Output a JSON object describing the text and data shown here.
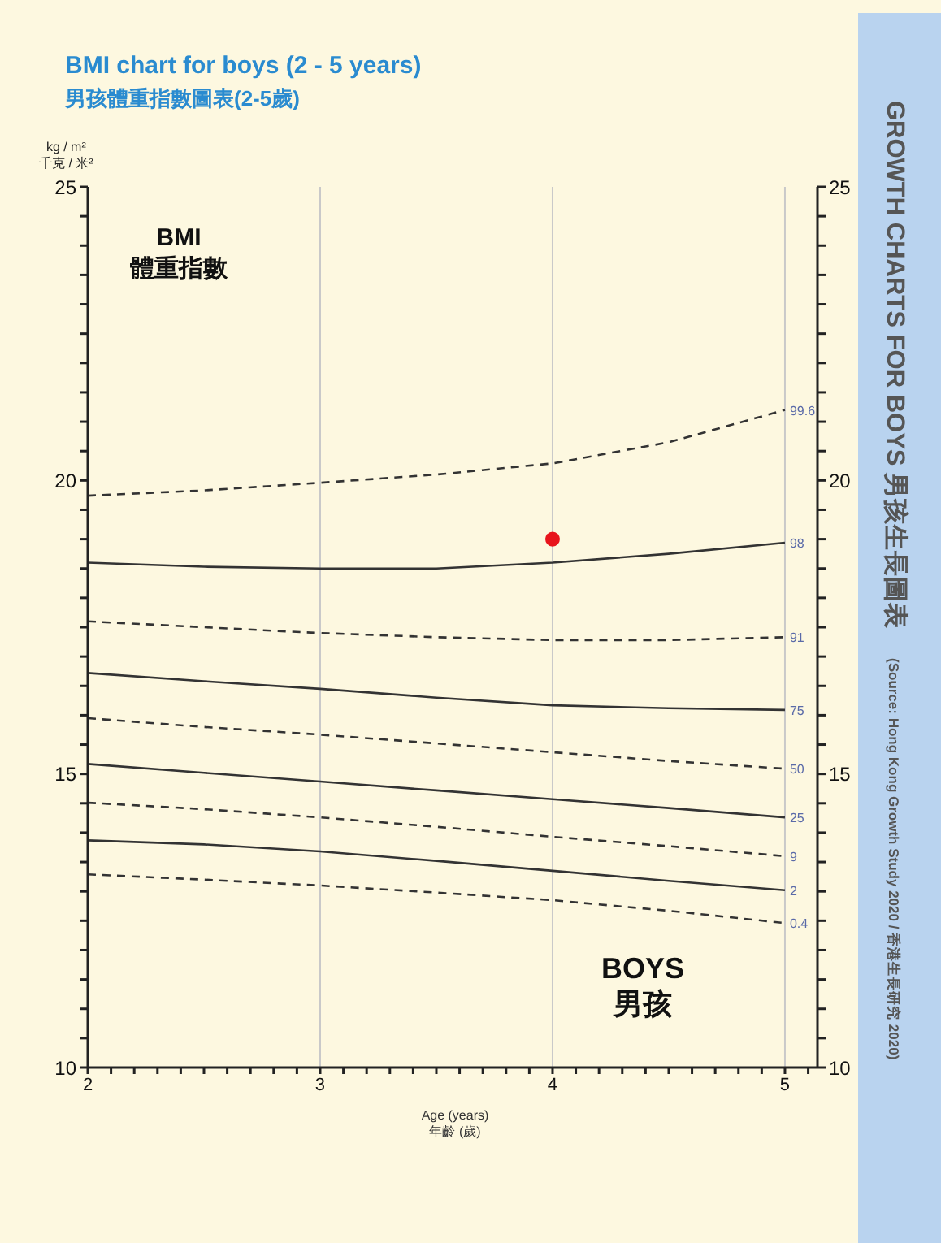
{
  "chart_data": {
    "type": "line",
    "title": "BMI chart for boys (2 - 5 years)",
    "subtitle": "男孩體重指數圖表(2-5歲)",
    "xlabel": "Age (years)\n年齡 (歲)",
    "ylabel": "kg / m²\n千克 / 米²",
    "annotations": [
      "BMI\n體重指數",
      "BOYS\n男孩",
      "GROWTH CHARTS FOR BOYS 男孩生長圖表",
      "(Source: Hong Kong Growth Study 2020 / 香港生長研究 2020)"
    ],
    "x": [
      2,
      2.5,
      3,
      3.5,
      4,
      4.5,
      5
    ],
    "series": [
      {
        "name": "99.6",
        "color": "#333333",
        "line_style": "dashed",
        "values": [
          19.74,
          19.83,
          19.96,
          20.1,
          20.29,
          20.65,
          21.2
        ]
      },
      {
        "name": "98",
        "color": "#333333",
        "line_style": "solid",
        "values": [
          18.6,
          18.53,
          18.5,
          18.5,
          18.6,
          18.75,
          18.94
        ]
      },
      {
        "name": "91",
        "color": "#333333",
        "line_style": "dashed",
        "values": [
          17.6,
          17.5,
          17.4,
          17.33,
          17.28,
          17.28,
          17.33
        ]
      },
      {
        "name": "75",
        "color": "#333333",
        "line_style": "solid",
        "values": [
          16.72,
          16.58,
          16.45,
          16.3,
          16.17,
          16.12,
          16.09
        ]
      },
      {
        "name": "50",
        "color": "#333333",
        "line_style": "dashed",
        "values": [
          15.95,
          15.8,
          15.67,
          15.52,
          15.37,
          15.22,
          15.09
        ]
      },
      {
        "name": "25",
        "color": "#333333",
        "line_style": "solid",
        "values": [
          15.17,
          15.02,
          14.87,
          14.72,
          14.57,
          14.42,
          14.26
        ]
      },
      {
        "name": "9",
        "color": "#333333",
        "line_style": "dashed",
        "values": [
          14.51,
          14.4,
          14.26,
          14.1,
          13.93,
          13.77,
          13.6
        ]
      },
      {
        "name": "2",
        "color": "#333333",
        "line_style": "solid",
        "values": [
          13.87,
          13.8,
          13.68,
          13.52,
          13.35,
          13.18,
          13.02
        ]
      },
      {
        "name": "0.4",
        "color": "#333333",
        "line_style": "dashed",
        "values": [
          13.29,
          13.2,
          13.1,
          12.98,
          12.85,
          12.67,
          12.46
        ]
      },
      {
        "type": "scatter",
        "color": "#e8141c",
        "marker": "circle",
        "x": [
          4
        ],
        "values": [
          19
        ]
      }
    ],
    "xlim": [
      2,
      5.14
    ],
    "xticks": [
      2,
      {
        "value": 2.1,
        "label": null
      },
      {
        "value": 2.2,
        "label": null
      },
      {
        "value": 2.3,
        "label": null
      },
      {
        "value": 2.4,
        "label": null
      },
      {
        "value": 2.5,
        "label": null
      },
      {
        "value": 2.6,
        "label": null
      },
      {
        "value": 2.7,
        "label": null
      },
      {
        "value": 2.8,
        "label": null
      },
      {
        "value": 2.9,
        "label": null
      },
      3,
      {
        "value": 3.1,
        "label": null
      },
      {
        "value": 3.2,
        "label": null
      },
      {
        "value": 3.3,
        "label": null
      },
      {
        "value": 3.4,
        "label": null
      },
      {
        "value": 3.5,
        "label": null
      },
      {
        "value": 3.6,
        "label": null
      },
      {
        "value": 3.7,
        "label": null
      },
      {
        "value": 3.8,
        "label": null
      },
      {
        "value": 3.9,
        "label": null
      },
      4,
      {
        "value": 4.1,
        "label": null
      },
      {
        "value": 4.2,
        "label": null
      },
      {
        "value": 4.3,
        "label": null
      },
      {
        "value": 4.4,
        "label": null
      },
      {
        "value": 4.5,
        "label": null
      },
      {
        "value": 4.6,
        "label": null
      },
      {
        "value": 4.7,
        "label": null
      },
      {
        "value": 4.8,
        "label": null
      },
      {
        "value": 4.9,
        "label": null
      },
      5,
      {
        "value": 5.1,
        "label": null
      }
    ],
    "ylim": [
      10,
      25
    ],
    "yticks": [
      10,
      {
        "value": 10.5,
        "label": null
      },
      {
        "value": 11,
        "label": null
      },
      {
        "value": 11.5,
        "label": null
      },
      {
        "value": 12,
        "label": null
      },
      {
        "value": 12.5,
        "label": null
      },
      {
        "value": 13,
        "label": null
      },
      {
        "value": 13.5,
        "label": null
      },
      {
        "value": 14,
        "label": null
      },
      {
        "value": 14.5,
        "label": null
      },
      15,
      {
        "value": 15.5,
        "label": null
      },
      {
        "value": 16,
        "label": null
      },
      {
        "value": 16.5,
        "label": null
      },
      {
        "value": 17,
        "label": null
      },
      {
        "value": 17.5,
        "label": null
      },
      {
        "value": 18,
        "label": null
      },
      {
        "value": 18.5,
        "label": null
      },
      {
        "value": 19,
        "label": null
      },
      {
        "value": 19.5,
        "label": null
      },
      20,
      {
        "value": 20.5,
        "label": null
      },
      {
        "value": 21,
        "label": null
      },
      {
        "value": 21.5,
        "label": null
      },
      {
        "value": 22,
        "label": null
      },
      {
        "value": 22.5,
        "label": null
      },
      {
        "value": 23,
        "label": null
      },
      {
        "value": 23.5,
        "label": null
      },
      {
        "value": 24,
        "label": null
      },
      {
        "value": 24.5,
        "label": null
      },
      25
    ],
    "y2lim": [
      10,
      25
    ],
    "y2ticks": [
      10,
      {
        "value": 10.5,
        "label": null
      },
      {
        "value": 11,
        "label": null
      },
      {
        "value": 11.5,
        "label": null
      },
      {
        "value": 12,
        "label": null
      },
      {
        "value": 12.5,
        "label": null
      },
      {
        "value": 13,
        "label": null
      },
      {
        "value": 13.5,
        "label": null
      },
      {
        "value": 14,
        "label": null
      },
      {
        "value": 14.5,
        "label": null
      },
      15,
      {
        "value": 15.5,
        "label": null
      },
      {
        "value": 16,
        "label": null
      },
      {
        "value": 16.5,
        "label": null
      },
      {
        "value": 17,
        "label": null
      },
      {
        "value": 17.5,
        "label": null
      },
      {
        "value": 18,
        "label": null
      },
      {
        "value": 18.5,
        "label": null
      },
      {
        "value": 19,
        "label": null
      },
      {
        "value": 19.5,
        "label": null
      },
      20,
      {
        "value": 20.5,
        "label": null
      },
      {
        "value": 21,
        "label": null
      },
      {
        "value": 21.5,
        "label": null
      },
      {
        "value": 22,
        "label": null
      },
      {
        "value": 22.5,
        "label": null
      },
      {
        "value": 23,
        "label": null
      },
      {
        "value": 23.5,
        "label": null
      },
      {
        "value": 24,
        "label": null
      },
      {
        "value": 24.5,
        "label": null
      },
      25
    ],
    "grid": true,
    "legend": false,
    "marker": "none"
  }
}
